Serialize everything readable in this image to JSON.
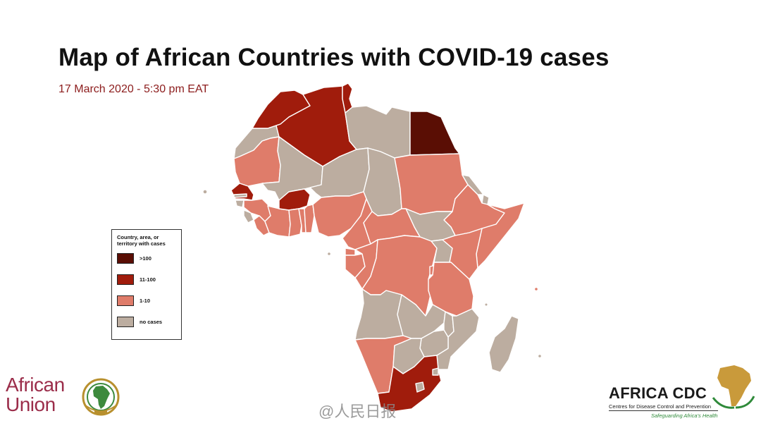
{
  "title": "Map of African Countries with COVID-19 cases",
  "subtitle": "17 March 2020 - 5:30 pm EAT",
  "colors": {
    "subtitle": "#8c1c1c",
    "over_100": "#5a0e04",
    "r11_100": "#a01c0c",
    "r1_10": "#df7c6a",
    "none": "#bcada0",
    "au_text": "#9b2d4a",
    "au_gold": "#b8902e",
    "au_green": "#3d8a3d",
    "cdc_green": "#2f8a3a",
    "cdc_gold": "#c99a3b"
  },
  "legend": {
    "title": "Country, area, or territory with cases",
    "items": [
      {
        "label": ">100",
        "color_key": "over_100"
      },
      {
        "label": "11-100",
        "color_key": "r11_100"
      },
      {
        "label": "1-10",
        "color_key": "r1_10"
      },
      {
        "label": "no cases",
        "color_key": "none"
      }
    ]
  },
  "map": {
    "regions": [
      {
        "name": "egypt",
        "category": "over_100"
      },
      {
        "name": "algeria",
        "category": "r11_100"
      },
      {
        "name": "morocco",
        "category": "r11_100"
      },
      {
        "name": "tunisia",
        "category": "r11_100"
      },
      {
        "name": "senegal",
        "category": "r11_100"
      },
      {
        "name": "burkina-faso",
        "category": "r11_100"
      },
      {
        "name": "south-africa",
        "category": "r11_100"
      },
      {
        "name": "mauritania",
        "category": "r1_10"
      },
      {
        "name": "sudan",
        "category": "r1_10"
      },
      {
        "name": "ethiopia",
        "category": "r1_10"
      },
      {
        "name": "somalia",
        "category": "r1_10"
      },
      {
        "name": "kenya",
        "category": "r1_10"
      },
      {
        "name": "tanzania",
        "category": "r1_10"
      },
      {
        "name": "drc",
        "category": "r1_10"
      },
      {
        "name": "congo",
        "category": "r1_10"
      },
      {
        "name": "gabon",
        "category": "r1_10"
      },
      {
        "name": "cameroon",
        "category": "r1_10"
      },
      {
        "name": "nigeria",
        "category": "r1_10"
      },
      {
        "name": "car",
        "category": "r1_10"
      },
      {
        "name": "ghana",
        "category": "r1_10"
      },
      {
        "name": "togo",
        "category": "r1_10"
      },
      {
        "name": "benin",
        "category": "r1_10"
      },
      {
        "name": "ivory-coast",
        "category": "r1_10"
      },
      {
        "name": "liberia",
        "category": "r1_10"
      },
      {
        "name": "guinea",
        "category": "r1_10"
      },
      {
        "name": "eq-guinea",
        "category": "r1_10"
      },
      {
        "name": "rwanda",
        "category": "r1_10"
      },
      {
        "name": "namibia",
        "category": "r1_10"
      },
      {
        "name": "seychelles",
        "category": "r1_10"
      },
      {
        "name": "western-sahara",
        "category": "none"
      },
      {
        "name": "libya",
        "category": "none"
      },
      {
        "name": "mali",
        "category": "none"
      },
      {
        "name": "niger",
        "category": "none"
      },
      {
        "name": "chad",
        "category": "none"
      },
      {
        "name": "eritrea",
        "category": "none"
      },
      {
        "name": "south-sudan",
        "category": "none"
      },
      {
        "name": "uganda",
        "category": "none"
      },
      {
        "name": "angola",
        "category": "none"
      },
      {
        "name": "zambia",
        "category": "none"
      },
      {
        "name": "malawi",
        "category": "none"
      },
      {
        "name": "mozambique",
        "category": "none"
      },
      {
        "name": "zimbabwe",
        "category": "none"
      },
      {
        "name": "botswana",
        "category": "none"
      },
      {
        "name": "madagascar",
        "category": "none"
      },
      {
        "name": "sierra-leone",
        "category": "none"
      },
      {
        "name": "guinea-bissau",
        "category": "none"
      },
      {
        "name": "gambia",
        "category": "none"
      },
      {
        "name": "djibouti",
        "category": "none"
      },
      {
        "name": "lesotho",
        "category": "none"
      },
      {
        "name": "eswatini",
        "category": "none"
      },
      {
        "name": "cape-verde",
        "category": "none"
      },
      {
        "name": "sao-tome",
        "category": "none"
      },
      {
        "name": "comoros",
        "category": "none"
      },
      {
        "name": "mauritius",
        "category": "none"
      }
    ]
  },
  "logos": {
    "african_union": {
      "line1": "African",
      "line2": "Union"
    },
    "africa_cdc": {
      "name": "AFRICA CDC",
      "subtitle": "Centres for Disease Control and Prevention",
      "tagline": "Safeguarding Africa's Health"
    }
  },
  "watermark": "@人民日报"
}
